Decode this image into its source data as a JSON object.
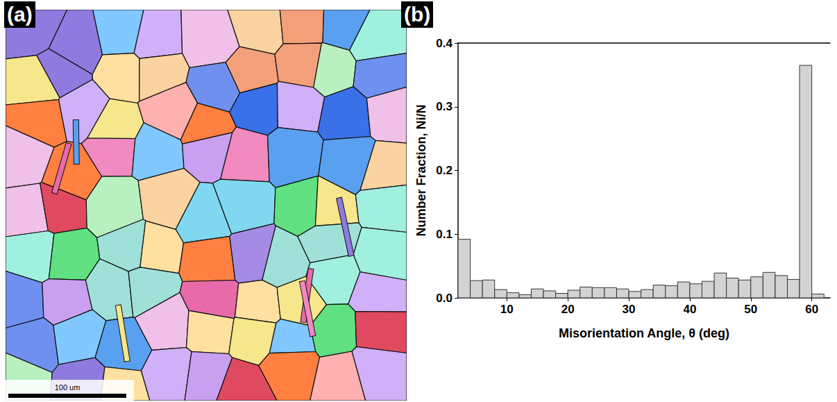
{
  "map": {
    "letter": "(a)",
    "scale_bar": "100 um"
  },
  "chart_letter": "(b)",
  "chart_data": {
    "type": "histogram",
    "x_label": "Misorientation Angle, θ (deg)",
    "y_label": "Number Fraction, Ni/N",
    "bins": [
      2,
      4,
      6,
      8,
      10,
      12,
      14,
      16,
      18,
      20,
      22,
      24,
      26,
      28,
      30,
      32,
      34,
      36,
      38,
      40,
      42,
      44,
      46,
      48,
      50,
      52,
      54,
      56,
      58,
      60,
      62
    ],
    "values": [
      0.092,
      0.027,
      0.028,
      0.013,
      0.008,
      0.005,
      0.014,
      0.011,
      0.007,
      0.012,
      0.017,
      0.016,
      0.016,
      0.014,
      0.01,
      0.013,
      0.02,
      0.019,
      0.025,
      0.022,
      0.026,
      0.039,
      0.031,
      0.028,
      0.033,
      0.04,
      0.035,
      0.029,
      0.365,
      0.006
    ],
    "color": "#d3d3d3",
    "xlim": [
      2,
      63
    ],
    "xticks": [
      10,
      20,
      30,
      40,
      50,
      60
    ],
    "ylim": [
      0,
      0.4
    ],
    "yticks": [
      {
        "value": 0,
        "label": "0.0"
      },
      0.1,
      0.2,
      0.3,
      0.4
    ],
    "grid": false
  }
}
